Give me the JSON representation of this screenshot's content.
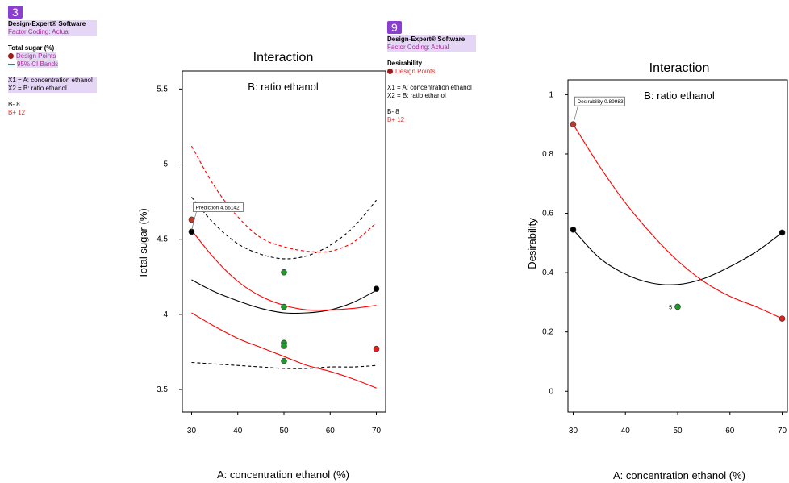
{
  "left": {
    "badge": "3",
    "software": "Design-Expert® Software",
    "factor_coding": "Factor Coding: Actual",
    "response_name": "Total sugar (%)",
    "design_points": "Design Points",
    "ci_bands": "95% CI Bands",
    "x1": "X1 = A: concentration ethanol",
    "x2": "X2 = B: ratio ethanol",
    "b_minus": "B- 8",
    "b_plus": "B+ 12"
  },
  "right": {
    "badge": "9",
    "software": "Design-Expert® Software",
    "factor_coding": "Factor Coding: Actual",
    "response_name": "Desirability",
    "design_points": "Design Points",
    "x1": "X1 = A: concentration ethanol",
    "x2": "X2 = B: ratio ethanol",
    "b_minus": "B- 8",
    "b_plus": "B+ 12"
  },
  "chart_data": [
    {
      "type": "line",
      "title": "Interaction",
      "subtitle": "B: ratio ethanol",
      "xlabel": "A: concentration ethanol (%)",
      "ylabel": "Total sugar (%)",
      "xlim": [
        28,
        72
      ],
      "ylim": [
        3.35,
        5.62
      ],
      "xticks": [
        "30",
        "40",
        "50",
        "60",
        "70"
      ],
      "yticks": [
        "3.5",
        "4",
        "4.5",
        "5",
        "5.5"
      ],
      "x": [
        30,
        35,
        40,
        45,
        50,
        55,
        60,
        65,
        70
      ],
      "series": [
        {
          "name": "B- 8",
          "color": "#000000",
          "values": [
            4.23,
            4.15,
            4.09,
            4.04,
            4.01,
            4.01,
            4.03,
            4.08,
            4.16
          ]
        },
        {
          "name": "B- 8 upper CI",
          "color": "#000000",
          "dashed": true,
          "values": [
            4.78,
            4.6,
            4.47,
            4.4,
            4.37,
            4.39,
            4.46,
            4.58,
            4.76
          ]
        },
        {
          "name": "B- 8 lower CI",
          "color": "#000000",
          "dashed": true,
          "values": [
            3.68,
            3.67,
            3.66,
            3.65,
            3.64,
            3.64,
            3.65,
            3.65,
            3.66
          ]
        },
        {
          "name": "B+ 12",
          "color": "#ff0000",
          "values": [
            4.56,
            4.37,
            4.22,
            4.12,
            4.06,
            4.03,
            4.03,
            4.04,
            4.06
          ]
        },
        {
          "name": "B+ 12 upper CI",
          "color": "#ff0000",
          "dashed": true,
          "values": [
            5.12,
            4.85,
            4.65,
            4.51,
            4.45,
            4.42,
            4.42,
            4.48,
            4.61
          ]
        },
        {
          "name": "B+ 12 lower CI",
          "color": "#ff0000",
          "values": [
            4.01,
            3.92,
            3.84,
            3.78,
            3.72,
            3.66,
            3.62,
            3.57,
            3.51
          ]
        }
      ],
      "points": [
        {
          "x": 30,
          "y": 4.63,
          "color": "#c0392b"
        },
        {
          "x": 30,
          "y": 4.55,
          "color": "#000000"
        },
        {
          "x": 50,
          "y": 4.28,
          "color": "#1f9a2a"
        },
        {
          "x": 50,
          "y": 4.05,
          "color": "#1f9a2a"
        },
        {
          "x": 50,
          "y": 3.81,
          "color": "#1f9a2a"
        },
        {
          "x": 50,
          "y": 3.79,
          "color": "#1f9a2a"
        },
        {
          "x": 50,
          "y": 3.69,
          "color": "#1f9a2a"
        },
        {
          "x": 70,
          "y": 4.17,
          "color": "#000000"
        },
        {
          "x": 70,
          "y": 3.77,
          "color": "#e02020"
        }
      ],
      "annotation": {
        "text": "Prediction 4.56142",
        "x": 30,
        "y": 4.56
      }
    },
    {
      "type": "line",
      "title": "Interaction",
      "subtitle": "B: ratio ethanol",
      "xlabel": "A: concentration ethanol (%)",
      "ylabel": "Desirability",
      "xlim": [
        29,
        71
      ],
      "ylim": [
        -0.07,
        1.05
      ],
      "xticks": [
        "30",
        "40",
        "50",
        "60",
        "70"
      ],
      "yticks": [
        "0",
        "0.2",
        "0.4",
        "0.6",
        "0.8",
        "1"
      ],
      "x": [
        30,
        35,
        40,
        45,
        50,
        55,
        60,
        65,
        70
      ],
      "series": [
        {
          "name": "B- 8",
          "color": "#000000",
          "values": [
            0.545,
            0.45,
            0.395,
            0.365,
            0.36,
            0.38,
            0.42,
            0.47,
            0.535
          ]
        },
        {
          "name": "B+ 12",
          "color": "#ff0000",
          "values": [
            0.9,
            0.76,
            0.635,
            0.53,
            0.44,
            0.37,
            0.32,
            0.285,
            0.245
          ]
        }
      ],
      "points": [
        {
          "x": 30,
          "y": 0.9,
          "color": "#c0392b"
        },
        {
          "x": 30,
          "y": 0.545,
          "color": "#000000"
        },
        {
          "x": 50,
          "y": 0.285,
          "color": "#1f9a2a",
          "label": "5"
        },
        {
          "x": 70,
          "y": 0.535,
          "color": "#000000"
        },
        {
          "x": 70,
          "y": 0.245,
          "color": "#e02020"
        }
      ],
      "annotation": {
        "text": "Desirability 0.89983",
        "x": 30,
        "y": 0.9
      }
    }
  ]
}
